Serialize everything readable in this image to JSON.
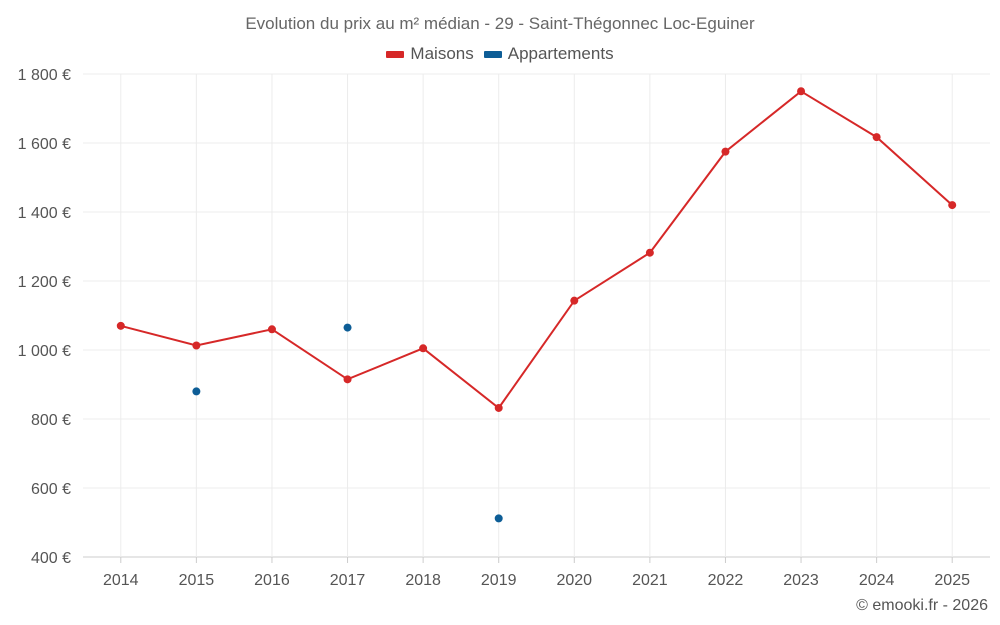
{
  "chart_data": {
    "type": "line",
    "title": "Evolution du prix au m² médian - 29 - Saint-Thégonnec Loc-Eguiner",
    "categories": [
      "2014",
      "2015",
      "2016",
      "2017",
      "2018",
      "2019",
      "2020",
      "2021",
      "2022",
      "2023",
      "2024",
      "2025"
    ],
    "series": [
      {
        "name": "Maisons",
        "color": "#d62828",
        "mode": "line+markers",
        "values": [
          1070,
          1013,
          1060,
          915,
          1005,
          832,
          1143,
          1282,
          1575,
          1750,
          1617,
          1420
        ]
      },
      {
        "name": "Appartements",
        "color": "#0d5d96",
        "mode": "markers",
        "values": [
          null,
          880,
          null,
          1065,
          null,
          null,
          null,
          null,
          null,
          null,
          null,
          null
        ]
      }
    ],
    "ylim": [
      400,
      1800
    ],
    "yticks": [
      400,
      600,
      800,
      1000,
      1200,
      1400,
      1600,
      1800
    ],
    "ytick_labels": [
      "400 €",
      "600 €",
      "800 €",
      "1 000 €",
      "1 200 €",
      "1 400 €",
      "1 600 €",
      "1 800 €"
    ],
    "grid": true,
    "legend_position": "top-center"
  },
  "apartments_outlier": {
    "category": "2019",
    "value": 512
  },
  "credit": "© emooki.fr - 2026"
}
